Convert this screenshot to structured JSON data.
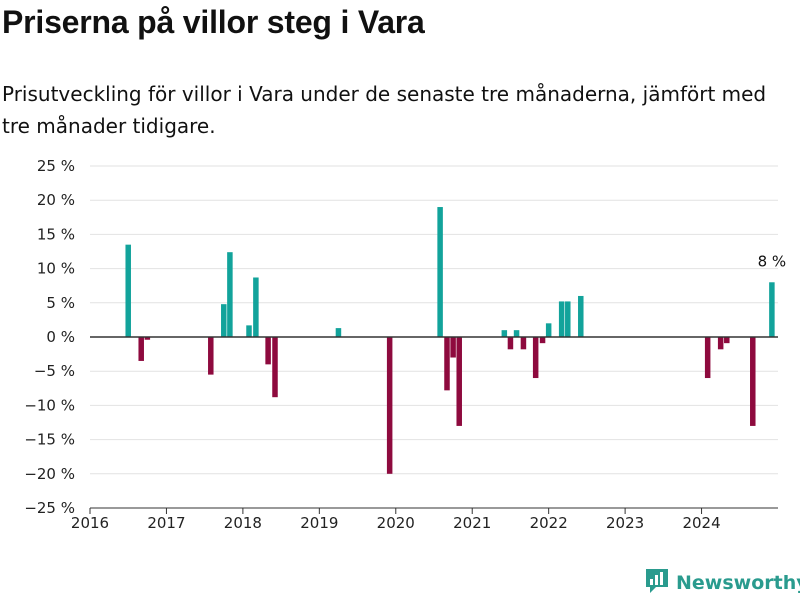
{
  "header": {
    "title": "Priserna på villor steg i Vara",
    "subtitle": "Prisutveckling för villor i Vara under de senaste tre månaderna, jämfört med tre månader tidigare."
  },
  "brand": {
    "name": "Newsworthy",
    "icon": "bar-chart-logo-icon",
    "color": "#2a9b8e"
  },
  "colors": {
    "positive": "#12a39b",
    "negative": "#8e0a3e",
    "grid": "#e2e2e2",
    "zero_line": "#333333"
  },
  "chart_data": {
    "type": "bar",
    "title": "Priserna på villor steg i Vara",
    "subtitle": "Prisutveckling för villor i Vara under de senaste tre månaderna, jämfört med tre månader tidigare.",
    "xlabel": "",
    "ylabel": "",
    "xlim": [
      2016.0,
      2025.0
    ],
    "ylim": [
      -25,
      25
    ],
    "x_ticks": [
      {
        "value": 2016,
        "label": "2016"
      },
      {
        "value": 2017,
        "label": "2017"
      },
      {
        "value": 2018,
        "label": "2018"
      },
      {
        "value": 2019,
        "label": "2019"
      },
      {
        "value": 2020,
        "label": "2020"
      },
      {
        "value": 2021,
        "label": "2021"
      },
      {
        "value": 2022,
        "label": "2022"
      },
      {
        "value": 2023,
        "label": "2023"
      },
      {
        "value": 2024,
        "label": "2024"
      }
    ],
    "y_ticks": [
      {
        "value": 25,
        "label": "25 %"
      },
      {
        "value": 20,
        "label": "20 %"
      },
      {
        "value": 15,
        "label": "15 %"
      },
      {
        "value": 10,
        "label": "10 %"
      },
      {
        "value": 5,
        "label": "5 %"
      },
      {
        "value": 0,
        "label": "0 %"
      },
      {
        "value": -5,
        "label": "−5 %"
      },
      {
        "value": -10,
        "label": "−10 %"
      },
      {
        "value": -15,
        "label": "−15 %"
      },
      {
        "value": -20,
        "label": "−20 %"
      },
      {
        "value": -25,
        "label": "−25 %"
      }
    ],
    "grid": true,
    "legend": "none",
    "series": [
      {
        "points": [
          {
            "x": 2016.5,
            "y": 13.5
          },
          {
            "x": 2016.67,
            "y": -3.5
          },
          {
            "x": 2016.75,
            "y": -0.4
          },
          {
            "x": 2017.58,
            "y": -5.5
          },
          {
            "x": 2017.75,
            "y": 4.8
          },
          {
            "x": 2017.83,
            "y": 12.4
          },
          {
            "x": 2018.08,
            "y": 1.7
          },
          {
            "x": 2018.17,
            "y": 8.7
          },
          {
            "x": 2018.33,
            "y": -4.0
          },
          {
            "x": 2018.42,
            "y": -8.8
          },
          {
            "x": 2019.25,
            "y": 1.3
          },
          {
            "x": 2019.92,
            "y": -20.0
          },
          {
            "x": 2020.58,
            "y": 19.0
          },
          {
            "x": 2020.67,
            "y": -7.8
          },
          {
            "x": 2020.75,
            "y": -3.0
          },
          {
            "x": 2020.83,
            "y": -13.0
          },
          {
            "x": 2021.42,
            "y": 1.0
          },
          {
            "x": 2021.5,
            "y": -1.8
          },
          {
            "x": 2021.58,
            "y": 1.0
          },
          {
            "x": 2021.67,
            "y": -1.8
          },
          {
            "x": 2021.83,
            "y": -6.0
          },
          {
            "x": 2021.92,
            "y": -0.9
          },
          {
            "x": 2022.0,
            "y": 2.0
          },
          {
            "x": 2022.17,
            "y": 5.2
          },
          {
            "x": 2022.25,
            "y": 5.2
          },
          {
            "x": 2022.42,
            "y": 6.0
          },
          {
            "x": 2024.08,
            "y": -6.0
          },
          {
            "x": 2024.25,
            "y": -1.8
          },
          {
            "x": 2024.33,
            "y": -0.9
          },
          {
            "x": 2024.67,
            "y": -13.0
          },
          {
            "x": 2024.92,
            "y": 8.0
          }
        ]
      }
    ],
    "annotations": [
      {
        "x": 2024.92,
        "y": 8.0,
        "text": "8 %"
      }
    ]
  }
}
